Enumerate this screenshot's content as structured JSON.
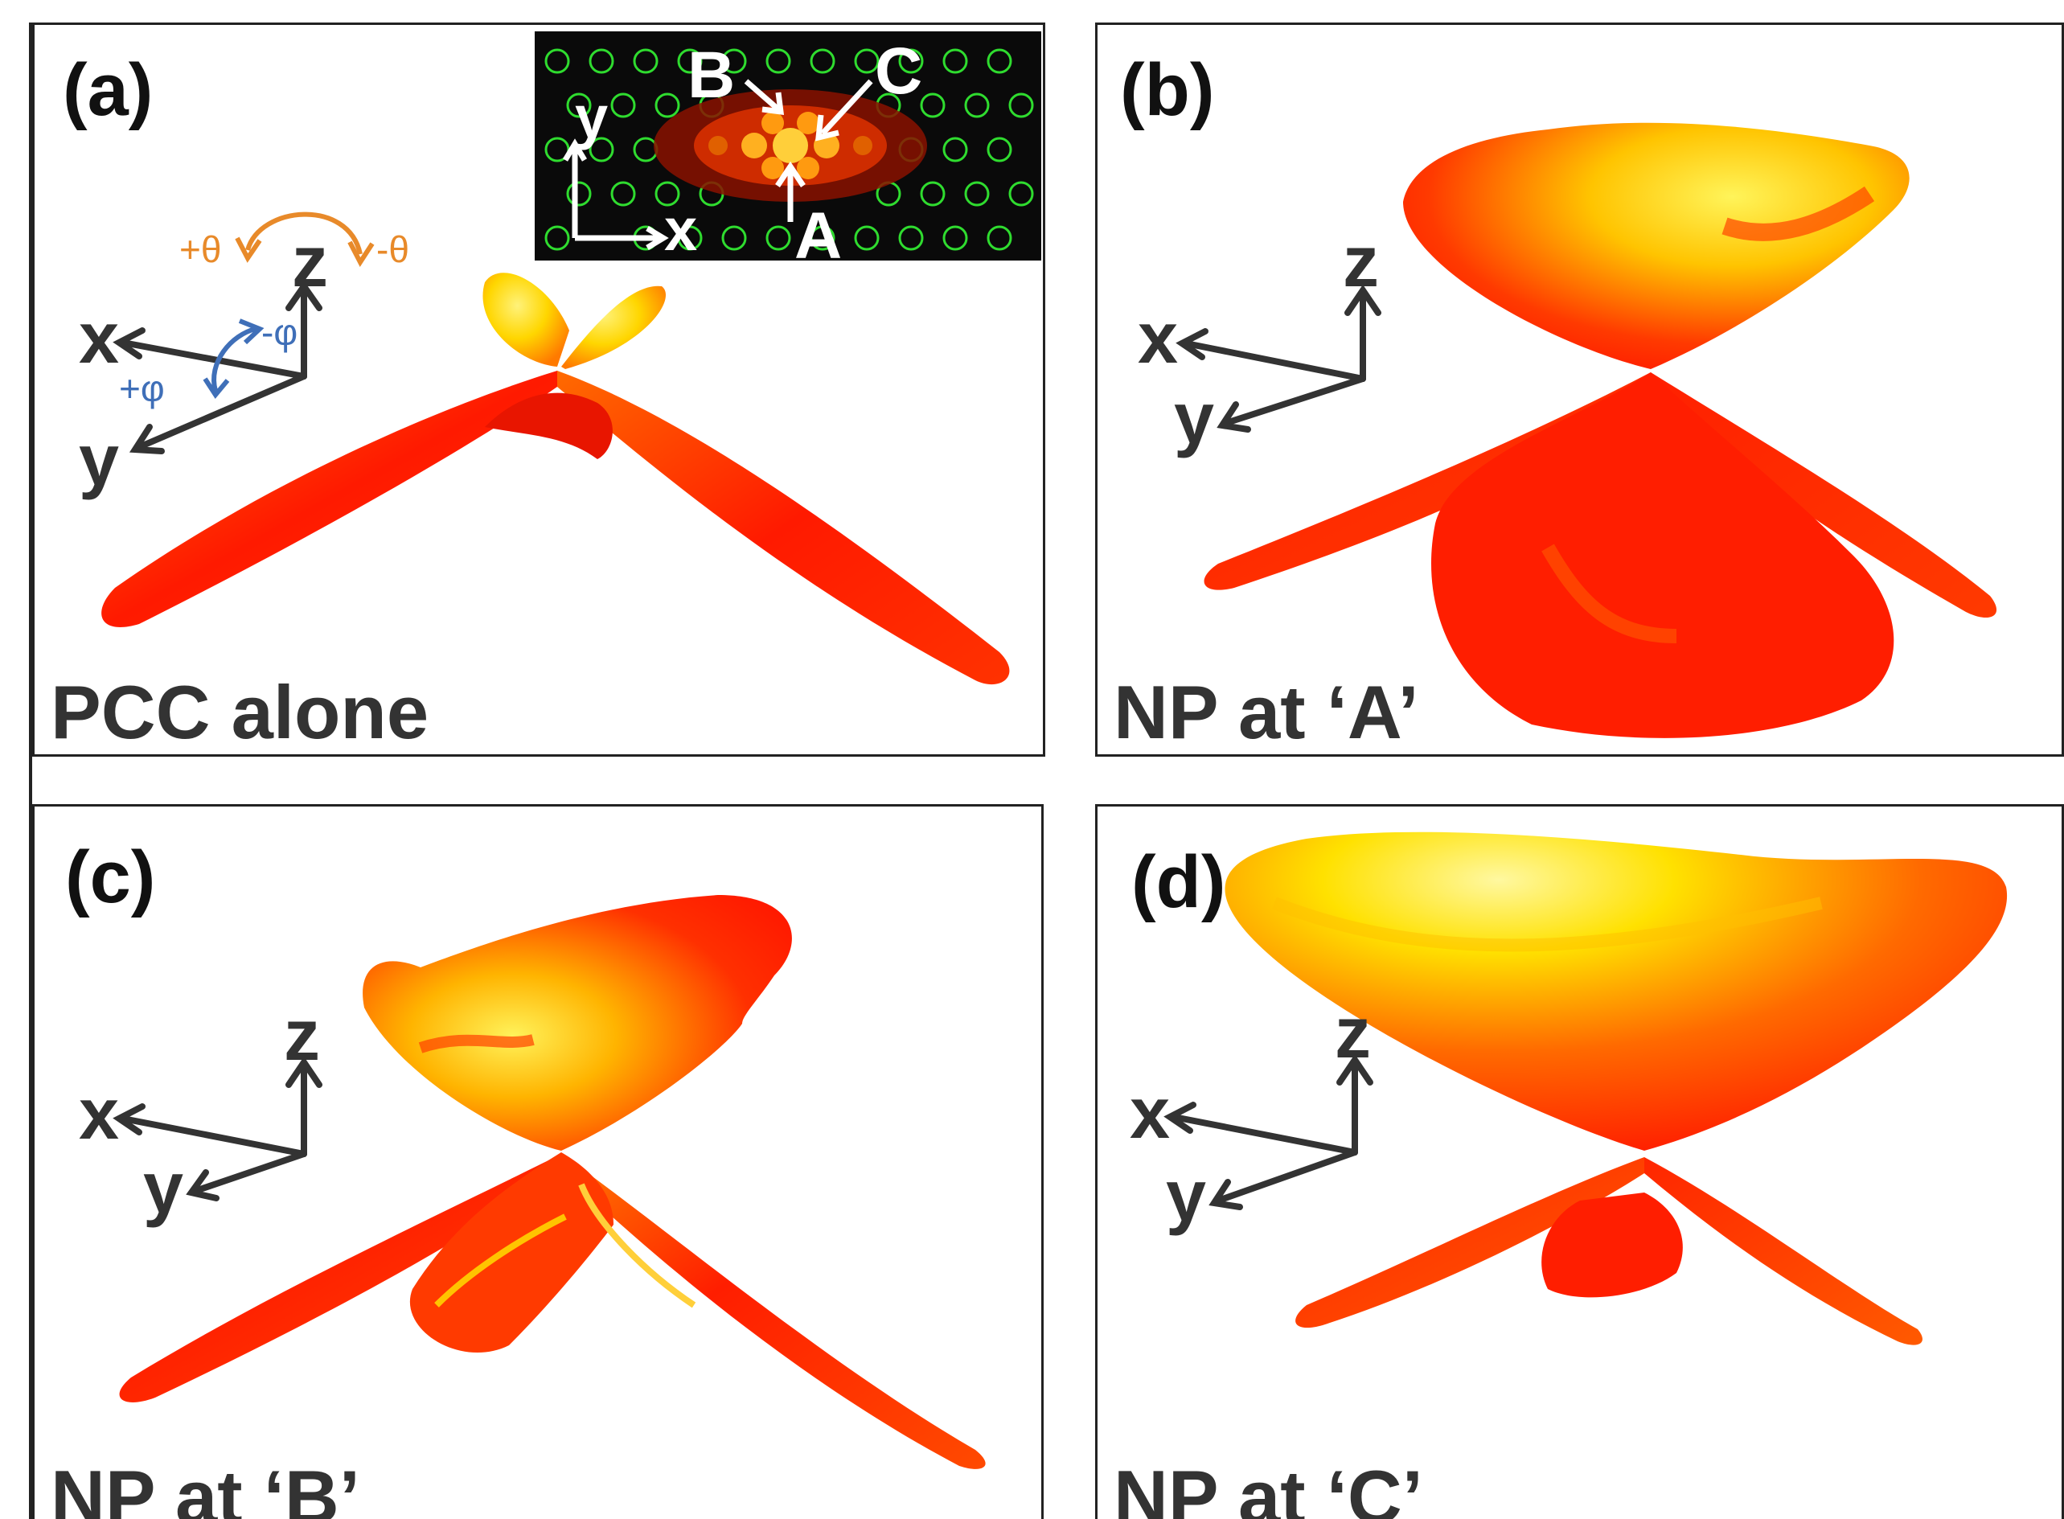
{
  "panels": {
    "a": {
      "label": "(a)",
      "caption": "PCC alone"
    },
    "b": {
      "label": "(b)",
      "caption": "NP at ‘A’"
    },
    "c": {
      "label": "(c)",
      "caption": "NP at ‘B’"
    },
    "d": {
      "label": "(d)",
      "caption": "NP at ‘C’"
    }
  },
  "axes": {
    "x": "x",
    "y": "y",
    "z": "z"
  },
  "angles": {
    "plus_theta": "+θ",
    "minus_theta": "-θ",
    "plus_phi": "+φ",
    "minus_phi": "-φ"
  },
  "inset": {
    "axis_x": "x",
    "axis_y": "y",
    "point_a": "A",
    "point_b": "B",
    "point_c": "C"
  },
  "colors": {
    "lobe_red": "#ff1a00",
    "lobe_yellow": "#ffe81a",
    "theta_arrow": "#e88a2a",
    "phi_arrow": "#3f6fb8",
    "axis": "#333333"
  }
}
